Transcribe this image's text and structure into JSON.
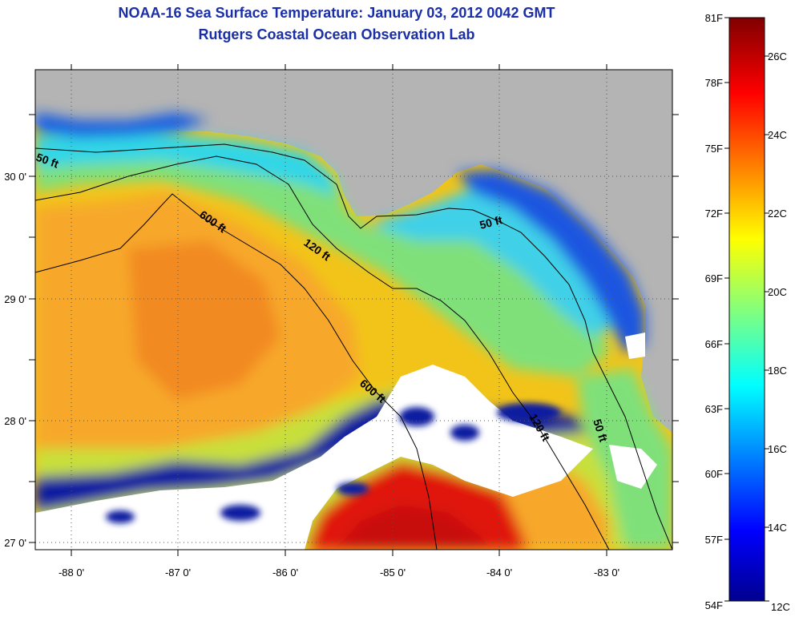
{
  "title": {
    "line1": "NOAA-16 Sea Surface Temperature:  January 03, 2012 0042 GMT",
    "line2": "Rutgers Coastal Ocean Observation Lab"
  },
  "map": {
    "lon_ticks": [
      "-88 0'",
      "-87 0'",
      "-86 0'",
      "-85 0'",
      "-84 0'",
      "-83 0'"
    ],
    "lat_ticks": [
      "30 0'",
      "29 0'",
      "28 0'",
      "27 0'"
    ],
    "contour_labels": [
      {
        "text": "50 ft",
        "id": "contour-50ft-west"
      },
      {
        "text": "600 ft",
        "id": "contour-600ft-north"
      },
      {
        "text": "120 ft",
        "id": "contour-120ft"
      },
      {
        "text": "50 ft",
        "id": "contour-50ft-east"
      },
      {
        "text": "600 ft",
        "id": "contour-600ft-south"
      },
      {
        "text": "120 ft",
        "id": "contour-120ft-south"
      },
      {
        "text": "50 ft",
        "id": "contour-50ft-south"
      }
    ],
    "colors": {
      "land": "#b4b4b4",
      "cloud": "#ffffff",
      "deep_blue": "#0a1ea0"
    }
  },
  "colorbar": {
    "fahrenheit": [
      "81F",
      "78F",
      "75F",
      "72F",
      "69F",
      "66F",
      "63F",
      "60F",
      "57F",
      "54F"
    ],
    "celsius": [
      "26C",
      "24C",
      "22C",
      "20C",
      "18C",
      "16C",
      "14C",
      "12C"
    ]
  }
}
